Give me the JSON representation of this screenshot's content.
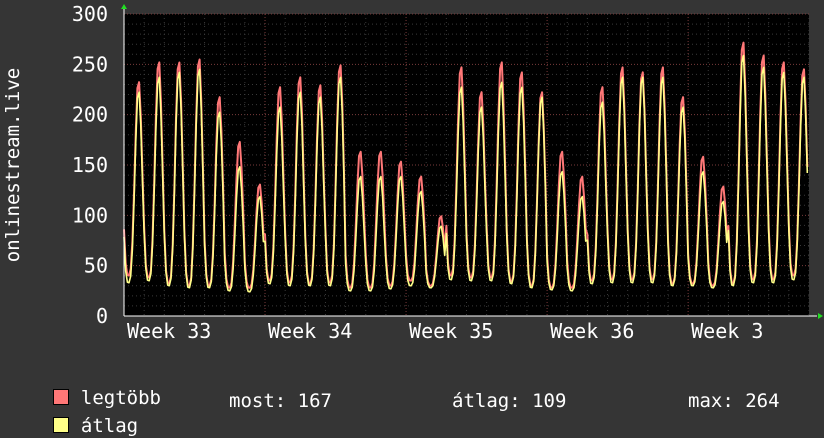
{
  "chart_data": {
    "type": "line",
    "ylabel": "onlinestream.live",
    "ylim": [
      0,
      300
    ],
    "yticks": [
      0,
      50,
      100,
      150,
      200,
      250,
      300
    ],
    "xticks": [
      "Week 33",
      "Week 34",
      "Week 35",
      "Week 36",
      "Week 3"
    ],
    "grid": true,
    "series": [
      {
        "name": "legtöbb",
        "color": "#ff7777",
        "daily_peaks": [
          235,
          255,
          255,
          258,
          220,
          175,
          132,
          230,
          240,
          232,
          252,
          165,
          165,
          155,
          140,
          100,
          250,
          225,
          255,
          245,
          225,
          165,
          140,
          230,
          250,
          245,
          250,
          220,
          160,
          130,
          275,
          262,
          255,
          248
        ],
        "daily_lows": [
          40,
          38,
          32,
          30,
          30,
          28,
          28,
          35,
          33,
          32,
          33,
          28,
          28,
          30,
          35,
          30,
          40,
          38,
          38,
          34,
          30,
          28,
          28,
          35,
          36,
          36,
          36,
          32,
          32,
          30,
          32,
          36,
          36,
          40
        ]
      },
      {
        "name": "átlag",
        "color": "#ffff88",
        "daily_peaks": [
          225,
          240,
          245,
          248,
          205,
          150,
          120,
          210,
          225,
          220,
          240,
          140,
          140,
          140,
          125,
          90,
          230,
          210,
          235,
          230,
          220,
          145,
          120,
          215,
          240,
          240,
          240,
          210,
          145,
          115,
          262,
          250,
          245,
          240
        ],
        "daily_lows": [
          33,
          35,
          30,
          28,
          28,
          25,
          24,
          32,
          30,
          30,
          30,
          25,
          25,
          27,
          30,
          28,
          36,
          35,
          35,
          32,
          28,
          26,
          25,
          32,
          33,
          33,
          33,
          30,
          30,
          28,
          30,
          33,
          33,
          36
        ]
      }
    ],
    "legend": {
      "items": [
        {
          "label": "legtöbb",
          "color": "#ff7777"
        },
        {
          "label": "átlag",
          "color": "#ffff88"
        }
      ],
      "stats": {
        "most": "most: 167",
        "atlag": "átlag: 109",
        "max": "max: 264"
      }
    }
  }
}
